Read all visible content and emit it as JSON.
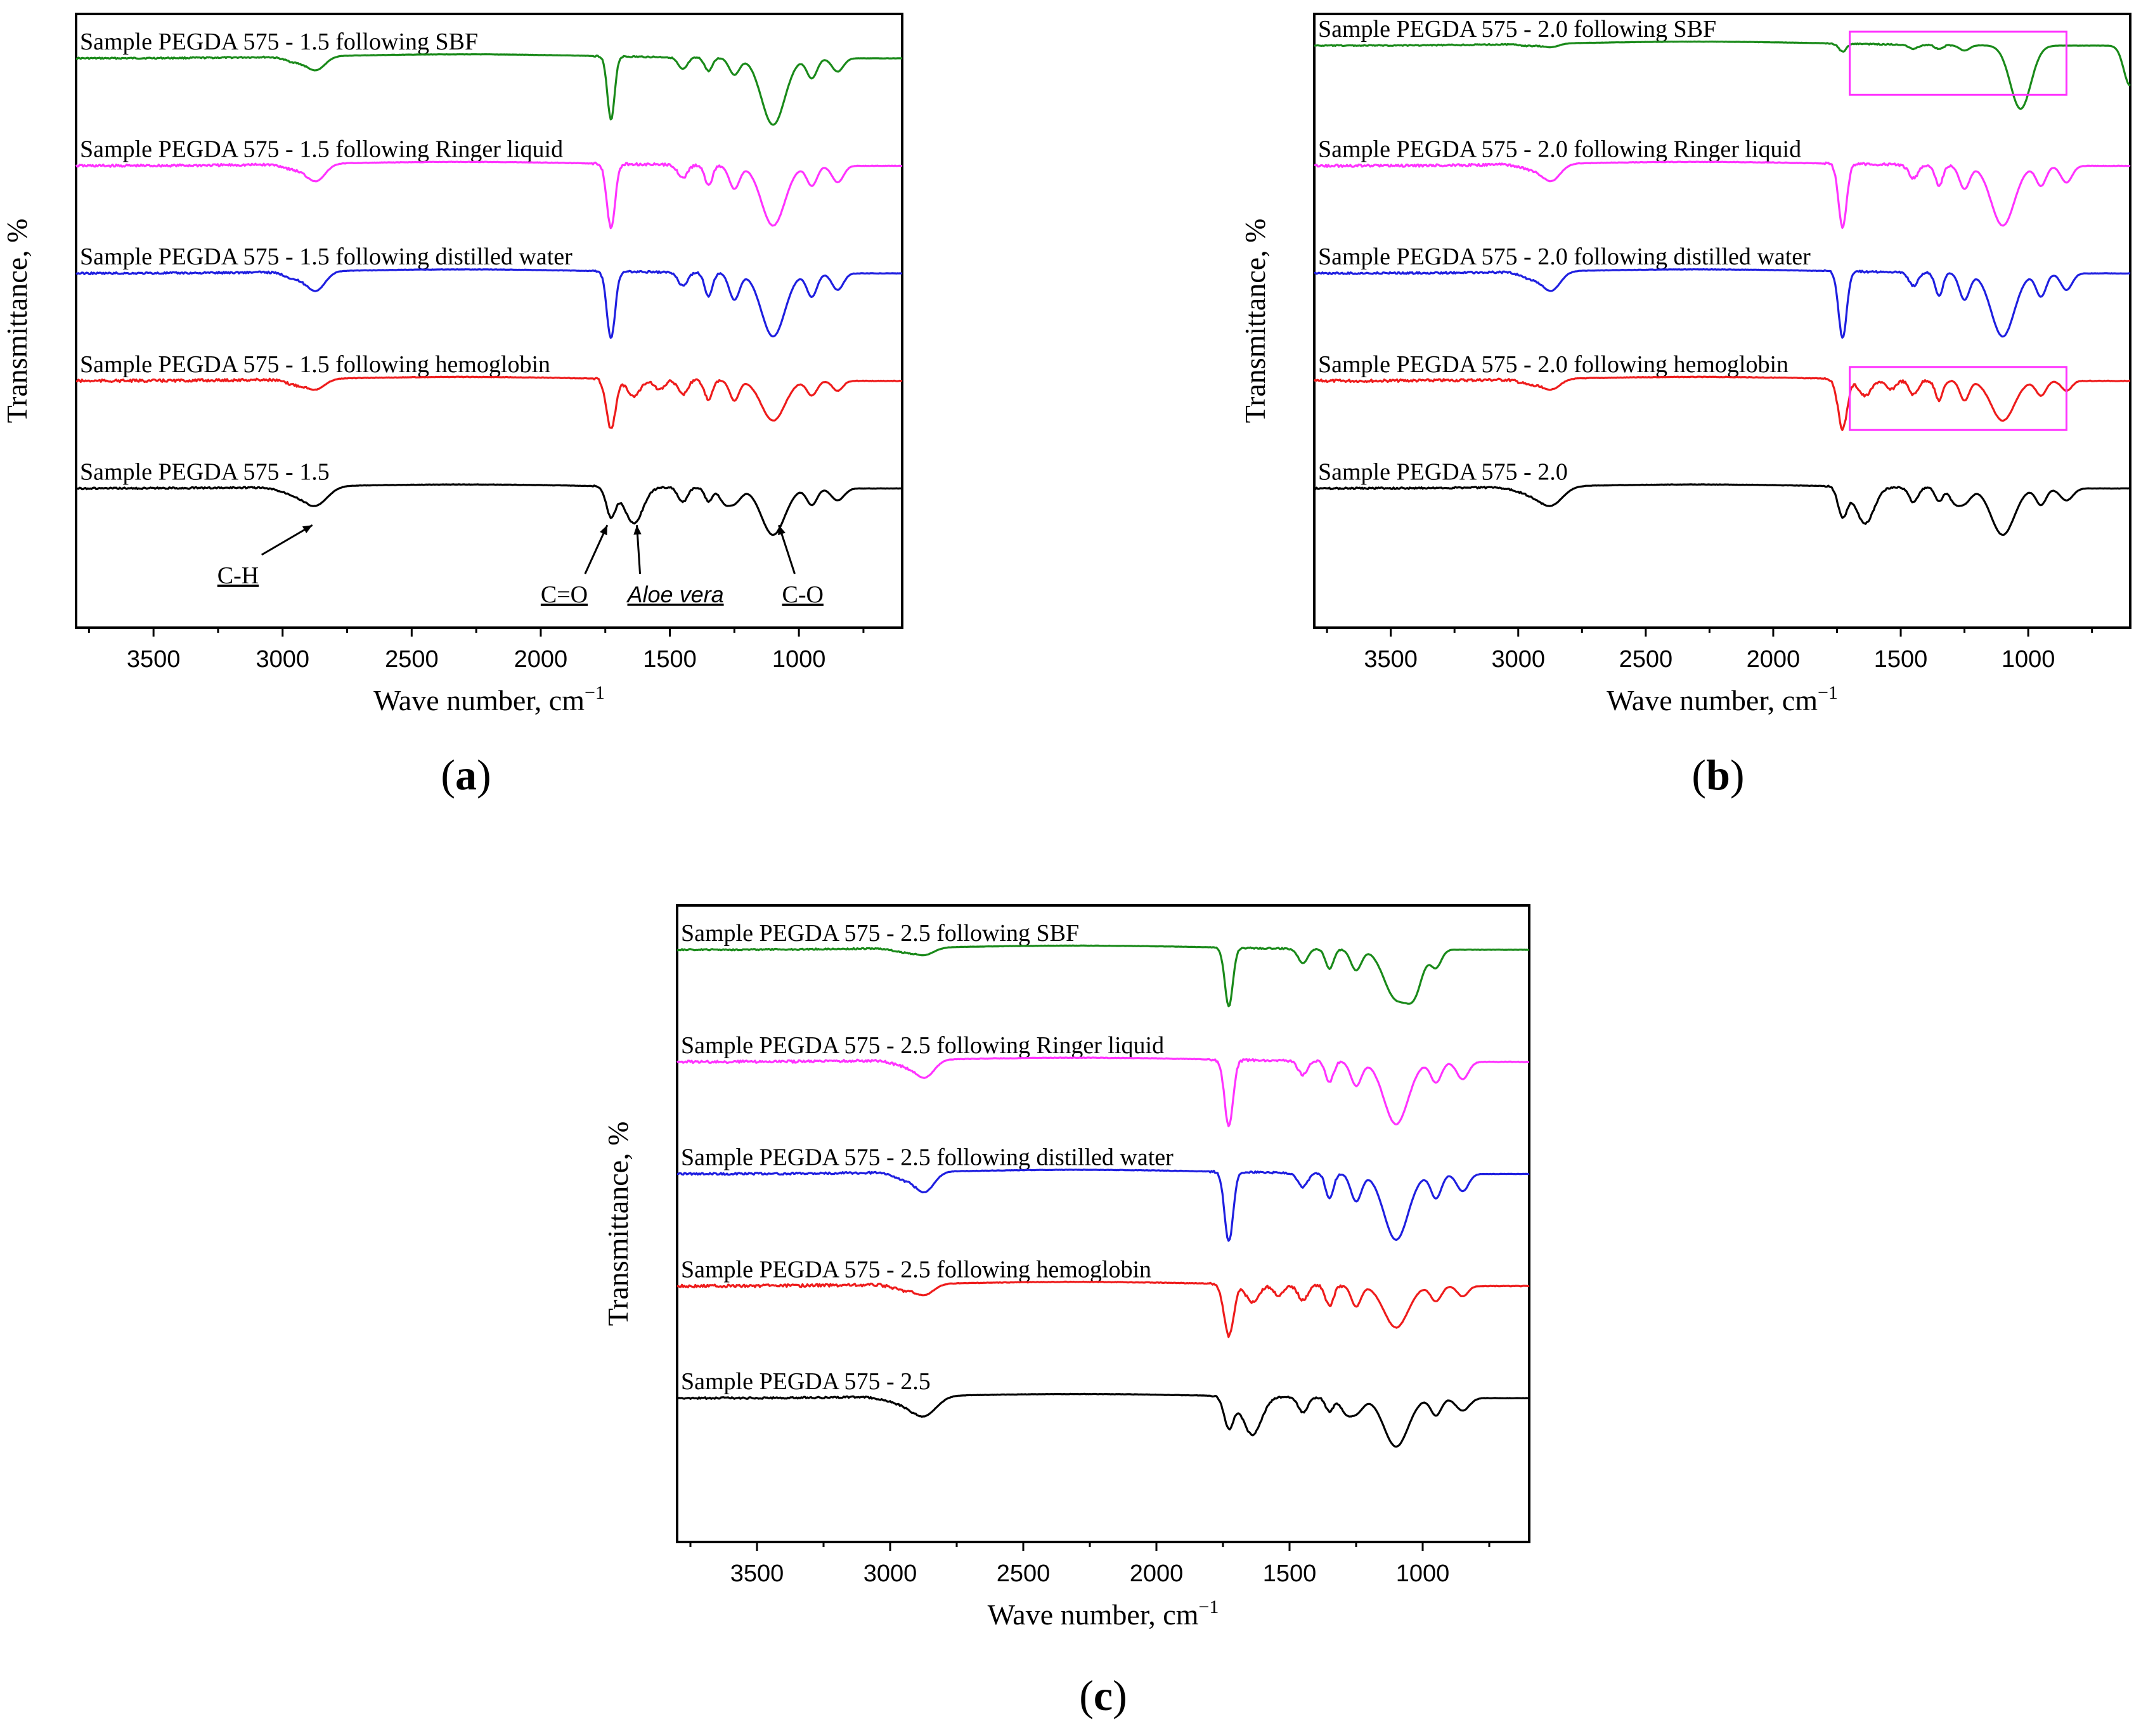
{
  "chart_data": [
    {
      "id": "a",
      "type": "line",
      "panel_label": "a",
      "xlabel": "Wave number, cm",
      "xlabel_sup": "−1",
      "ylabel": "Transmittance, %",
      "xlim": [
        3800,
        600
      ],
      "xticks": [
        "3500",
        "3000",
        "2500",
        "2000",
        "1500",
        "1000"
      ],
      "series": [
        {
          "name": "Sample PEGDA 575 - 1.5 following SBF",
          "color": "#1a8a1a",
          "profile": "sbf"
        },
        {
          "name": "Sample PEGDA 575 - 1.5 following Ringer liquid",
          "color": "#ff33ff",
          "profile": "ringer"
        },
        {
          "name": "Sample PEGDA 575 - 1.5 following distilled water",
          "color": "#1f1fe0",
          "profile": "water"
        },
        {
          "name": "Sample PEGDA 575 - 1.5 following hemoglobin",
          "color": "#ee1c1c",
          "profile": "hemo"
        },
        {
          "name": "Sample PEGDA 575 - 1.5",
          "color": "#000000",
          "profile": "base"
        }
      ],
      "annotations": [
        {
          "text": "C-H",
          "style": "normal",
          "wavenumber": 2860
        },
        {
          "text": "C=O",
          "style": "normal",
          "wavenumber": 1730
        },
        {
          "text": "Aloe vera",
          "style": "italic",
          "wavenumber": 1640
        },
        {
          "text": "C-O",
          "style": "normal",
          "wavenumber": 1090
        }
      ],
      "highlights": []
    },
    {
      "id": "b",
      "type": "line",
      "panel_label": "b",
      "xlabel": "Wave number, cm",
      "xlabel_sup": "−1",
      "ylabel": "Transmittance, %",
      "xlim": [
        3800,
        600
      ],
      "xticks": [
        "3500",
        "3000",
        "2500",
        "2000",
        "1500",
        "1000"
      ],
      "series": [
        {
          "name": "Sample PEGDA 575 - 2.0 following SBF",
          "color": "#1a8a1a",
          "profile": "sbf2"
        },
        {
          "name": "Sample PEGDA 575 - 2.0 following Ringer liquid",
          "color": "#ff33ff",
          "profile": "ringer"
        },
        {
          "name": "Sample PEGDA 575 - 2.0 following distilled water",
          "color": "#1f1fe0",
          "profile": "water"
        },
        {
          "name": "Sample PEGDA 575 - 2.0 following hemoglobin",
          "color": "#ee1c1c",
          "profile": "hemo"
        },
        {
          "name": "Sample PEGDA 575 - 2.0",
          "color": "#000000",
          "profile": "base"
        }
      ],
      "annotations": [],
      "highlights": [
        {
          "series_index": 0,
          "wavenumber_range": [
            1700,
            850
          ]
        },
        {
          "series_index": 3,
          "wavenumber_range": [
            1700,
            850
          ]
        }
      ]
    },
    {
      "id": "c",
      "type": "line",
      "panel_label": "c",
      "xlabel": "Wave number, cm",
      "xlabel_sup": "−1",
      "ylabel": "Transmittance, %",
      "xlim": [
        3800,
        600
      ],
      "xticks": [
        "3500",
        "3000",
        "2500",
        "2000",
        "1500",
        "1000"
      ],
      "series": [
        {
          "name": "Sample PEGDA 575 - 2.5 following SBF",
          "color": "#1a8a1a",
          "profile": "sbf3"
        },
        {
          "name": "Sample PEGDA 575 - 2.5 following Ringer liquid",
          "color": "#ff33ff",
          "profile": "ringer"
        },
        {
          "name": "Sample PEGDA 575 - 2.5 following distilled water",
          "color": "#1f1fe0",
          "profile": "water"
        },
        {
          "name": "Sample PEGDA 575 - 2.5 following hemoglobin",
          "color": "#ee1c1c",
          "profile": "hemo"
        },
        {
          "name": "Sample PEGDA 575 - 2.5",
          "color": "#000000",
          "profile": "base"
        }
      ],
      "annotations": [],
      "highlights": []
    }
  ]
}
